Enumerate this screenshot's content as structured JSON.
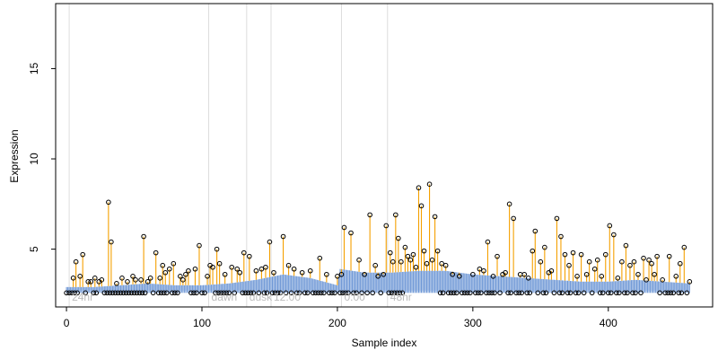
{
  "chart_data": {
    "type": "scatter",
    "title": "",
    "xlabel": "Sample index",
    "ylabel": "Expression",
    "xlim": [
      -8,
      477
    ],
    "ylim": [
      1.8,
      18.6
    ],
    "xticks": [
      0,
      100,
      200,
      300,
      400
    ],
    "yticks": [
      5,
      10,
      15
    ],
    "grid": false,
    "legend": "none",
    "colors": {
      "stem": "#f5a000",
      "baseline": "#6f98d6",
      "band": "#c6d6ee",
      "marker_edge": "#000000",
      "time_marker": "#dddddd",
      "time_label": "#bbbbbb"
    },
    "time_markers": [
      {
        "x": 2,
        "label": "24hr"
      },
      {
        "x": 105,
        "label": "dawn"
      },
      {
        "x": 133,
        "label": "dusk"
      },
      {
        "x": 151,
        "label": "12:00"
      },
      {
        "x": 203,
        "label": "0:00"
      },
      {
        "x": 237,
        "label": "48hr"
      }
    ],
    "baseline": {
      "knots_x": [
        0,
        20,
        40,
        60,
        80,
        100,
        120,
        140,
        160,
        180,
        200,
        202,
        220,
        240,
        260,
        280,
        300,
        320,
        340,
        360,
        380,
        400,
        420,
        440,
        460
      ],
      "knots_y": [
        2.9,
        2.9,
        3.0,
        3.1,
        3.0,
        3.0,
        3.1,
        3.3,
        3.6,
        3.4,
        3.0,
        3.9,
        3.7,
        3.7,
        3.8,
        3.8,
        3.6,
        3.5,
        3.4,
        3.3,
        3.2,
        3.2,
        3.3,
        3.2,
        3.1
      ],
      "band_low": 2.7
    },
    "series": [
      {
        "values": {
          "x": [
            5,
            7,
            10,
            12,
            16,
            18,
            21,
            24,
            26,
            31,
            33,
            37,
            41,
            45,
            49,
            51,
            55,
            57,
            60,
            62,
            66,
            69,
            71,
            73,
            76,
            79,
            84,
            86,
            88,
            90,
            95,
            98,
            104,
            106,
            108,
            111,
            113,
            117,
            122,
            126,
            128,
            131,
            135,
            140,
            144,
            147,
            150,
            153,
            160,
            164,
            168,
            174,
            180,
            187,
            192,
            200,
            203,
            205,
            210,
            216,
            220,
            224,
            228,
            230,
            234,
            236,
            239,
            241,
            243,
            245,
            247,
            250,
            252,
            254,
            256,
            258,
            260,
            262,
            264,
            266,
            268,
            270,
            272,
            274,
            277,
            280,
            285,
            290,
            300,
            305,
            308,
            311,
            315,
            318,
            322,
            324,
            327,
            330,
            335,
            338,
            341,
            344,
            346,
            350,
            353,
            356,
            358,
            362,
            365,
            368,
            371,
            374,
            377,
            380,
            384,
            386,
            390,
            392,
            395,
            398,
            401,
            404,
            407,
            410,
            413,
            416,
            419,
            422,
            426,
            428,
            430,
            432,
            434,
            436,
            440,
            445,
            450,
            453,
            456,
            460
          ],
          "y": [
            3.4,
            4.3,
            3.5,
            4.7,
            3.2,
            3.2,
            3.4,
            3.2,
            3.3,
            7.6,
            5.4,
            3.1,
            3.4,
            3.2,
            3.5,
            3.3,
            3.3,
            5.7,
            3.2,
            3.4,
            4.8,
            3.4,
            4.1,
            3.7,
            3.9,
            4.2,
            3.5,
            3.3,
            3.6,
            3.8,
            3.9,
            5.2,
            3.5,
            4.1,
            4.0,
            5.0,
            4.2,
            3.6,
            4.0,
            3.9,
            3.7,
            4.8,
            4.6,
            3.8,
            3.9,
            4.0,
            5.4,
            3.7,
            5.7,
            4.1,
            3.9,
            3.7,
            3.8,
            4.5,
            3.6,
            3.5,
            3.6,
            6.2,
            5.9,
            4.4,
            3.6,
            6.9,
            4.1,
            3.5,
            3.6,
            6.3,
            4.8,
            4.3,
            6.9,
            5.6,
            4.3,
            5.1,
            4.6,
            4.4,
            4.7,
            4.0,
            8.4,
            7.4,
            4.9,
            4.2,
            8.6,
            4.4,
            6.8,
            4.9,
            4.2,
            4.1,
            3.6,
            3.5,
            3.6,
            3.9,
            3.8,
            5.4,
            3.5,
            4.6,
            3.6,
            3.7,
            7.5,
            6.7,
            3.6,
            3.6,
            3.4,
            4.9,
            6.0,
            4.3,
            5.1,
            3.7,
            3.8,
            6.7,
            5.7,
            4.7,
            4.1,
            4.8,
            3.5,
            4.7,
            3.6,
            4.3,
            3.9,
            4.4,
            3.5,
            4.7,
            6.3,
            5.8,
            3.4,
            4.3,
            5.2,
            4.1,
            4.3,
            3.6,
            4.5,
            3.3,
            4.4,
            4.2,
            3.6,
            4.6,
            3.3,
            4.6,
            3.5,
            4.2,
            5.1,
            3.2
          ]
        }
      },
      {
        "values": {
          "y": 2.58
        }
      }
    ]
  }
}
